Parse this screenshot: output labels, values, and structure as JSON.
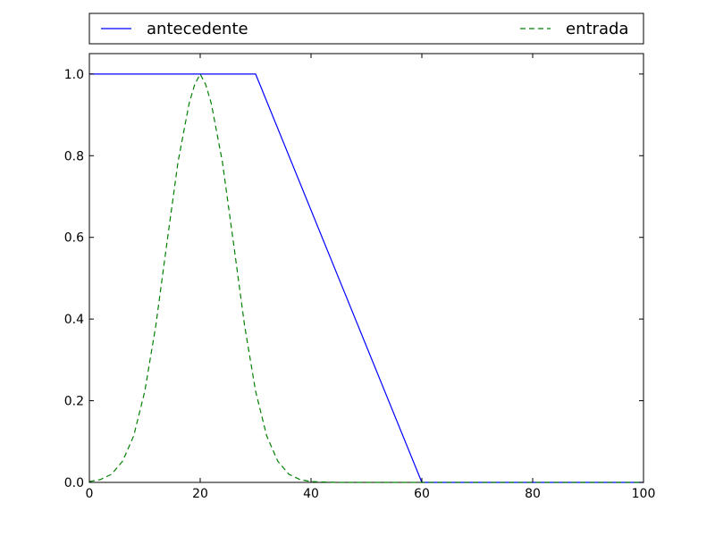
{
  "chart_data": {
    "type": "line",
    "title": "",
    "xlabel": "",
    "ylabel": "",
    "xlim": [
      0,
      100
    ],
    "ylim": [
      0,
      1.05
    ],
    "x_ticks": [
      0,
      20,
      40,
      60,
      80,
      100
    ],
    "x_tick_labels": [
      "0",
      "20",
      "40",
      "60",
      "80",
      "100"
    ],
    "y_ticks": [
      0,
      0.2,
      0.4,
      0.6,
      0.8,
      1.0
    ],
    "y_tick_labels": [
      "0.0",
      "0.2",
      "0.4",
      "0.6",
      "0.8",
      "1.0"
    ],
    "grid": false,
    "legend_placement": "top, outside plot area, spanning full width",
    "series": [
      {
        "name": "antecedente",
        "color": "#0000ff",
        "style": "solid",
        "x": [
          0,
          30,
          60,
          100
        ],
        "y": [
          1.0,
          1.0,
          0.0,
          0.0
        ]
      },
      {
        "name": "entrada",
        "color": "#008000",
        "style": "dashed",
        "x": [
          0,
          2,
          4,
          6,
          8,
          10,
          12,
          14,
          16,
          18,
          19,
          20,
          21,
          22,
          24,
          26,
          28,
          30,
          32,
          34,
          36,
          38,
          40,
          45,
          50,
          60,
          70,
          80,
          90,
          100
        ],
        "y": [
          0.002,
          0.007,
          0.02,
          0.052,
          0.114,
          0.223,
          0.385,
          0.587,
          0.785,
          0.928,
          0.974,
          1.0,
          0.974,
          0.928,
          0.785,
          0.587,
          0.385,
          0.223,
          0.114,
          0.052,
          0.02,
          0.007,
          0.002,
          0.0,
          0.0,
          0.0,
          0.0,
          0.0,
          0.0,
          0.0
        ]
      }
    ]
  }
}
